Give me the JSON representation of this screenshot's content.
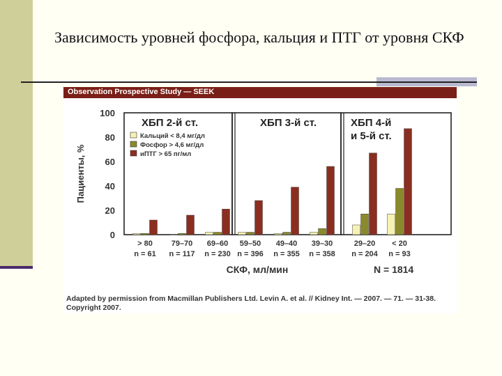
{
  "slide_title": "Зависимость уровней фосфора, кальция и ПТГ от уровня СКФ",
  "colors": {
    "calcium": "#f7f1b2",
    "phosphorus": "#8a8a2c",
    "pth": "#8b2e20",
    "header": "#7a1f17"
  },
  "chart_data": {
    "type": "bar",
    "title": "Observation Prospective Study — SEEK",
    "xlabel": "СКФ, мл/мин",
    "ylabel": "Пациенты, %",
    "ylim": [
      0,
      100
    ],
    "yticks": [
      "0",
      "20",
      "40",
      "60",
      "80",
      "100"
    ],
    "categories": [
      "> 80",
      "79–70",
      "69–60",
      "59–50",
      "49–40",
      "39–30",
      "29–20",
      "< 20"
    ],
    "n_labels": [
      "n = 61",
      "n = 117",
      "n = 230",
      "n = 396",
      "n = 355",
      "n = 358",
      "n = 204",
      "n = 93"
    ],
    "panels": [
      {
        "label_lines": [
          "ХБП 2-й ст."
        ],
        "categories": [
          0,
          1,
          2
        ]
      },
      {
        "label_lines": [
          "ХБП 3-й ст."
        ],
        "categories": [
          3,
          4,
          5
        ]
      },
      {
        "label_lines": [
          "ХБП 4-й",
          "и 5-й ст."
        ],
        "categories": [
          6,
          7
        ]
      }
    ],
    "series": [
      {
        "name": "Кальций < 8,4 мг/дл",
        "values": [
          1,
          0,
          2,
          2,
          1,
          2,
          8,
          17
        ]
      },
      {
        "name": "Фосфор > 4,6 мг/дл",
        "values": [
          1,
          1,
          2,
          2,
          2,
          5,
          17,
          38
        ]
      },
      {
        "name": "иПТГ > 65 пг/мл",
        "values": [
          12,
          16,
          21,
          28,
          39,
          56,
          67,
          87
        ]
      }
    ],
    "total": "N = 1814",
    "credit": "Adapted by permission from Macmillan Publishers Ltd. Levin A. et al. // Kidney Int. — 2007. — 71. — 31-38. Copyright 2007."
  }
}
